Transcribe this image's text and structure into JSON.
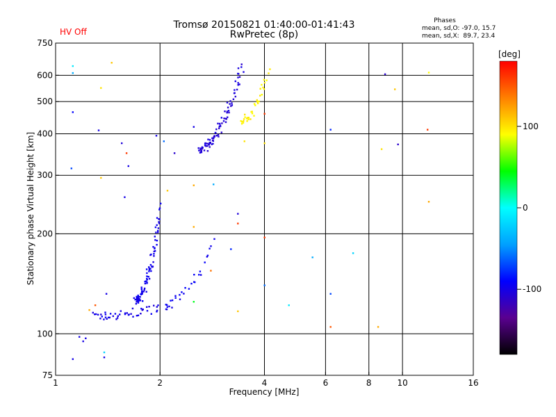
{
  "header": {
    "hv_status": "HV Off",
    "title_line1": "Tromsø 20150821 01:40:00-01:41:43",
    "title_line2": "RwPretec (8p)"
  },
  "stats": {
    "heading": "Phases",
    "line_o": "mean, sd,O: -97.0, 15.7",
    "line_x": "mean, sd,X:  89.7, 23.4"
  },
  "colorbar": {
    "unit_label": "[deg]",
    "ticks": [
      {
        "value": 100,
        "label": "100"
      },
      {
        "value": 0,
        "label": "0"
      },
      {
        "value": -100,
        "label": "-100"
      }
    ],
    "range": [
      -180,
      180
    ],
    "colors": [
      "#000000",
      "#5a0090",
      "#0000ff",
      "#00a0ff",
      "#00ffff",
      "#00ff00",
      "#ffff00",
      "#ff8000",
      "#ff0000"
    ]
  },
  "chart_data": {
    "type": "scatter",
    "title": "Tromsø 20150821 01:40:00-01:41:43",
    "subtitle": "RwPretec (8p)",
    "xlabel": "Frequency [MHz]",
    "ylabel": "Stationary phase Virtual Height [km]",
    "xscale": "log",
    "yscale": "log",
    "xlim": [
      1,
      16
    ],
    "ylim": [
      75,
      750
    ],
    "xticks": [
      {
        "value": 1,
        "label": "1"
      },
      {
        "value": 2,
        "label": "2"
      },
      {
        "value": 4,
        "label": "4"
      },
      {
        "value": 6,
        "label": "6"
      },
      {
        "value": 8,
        "label": "8"
      },
      {
        "value": 10,
        "label": "10"
      },
      {
        "value": 16,
        "label": "16"
      }
    ],
    "yticks": [
      {
        "value": 75,
        "label": "75"
      },
      {
        "value": 100,
        "label": "100"
      },
      {
        "value": 200,
        "label": "200"
      },
      {
        "value": 300,
        "label": "300"
      },
      {
        "value": 400,
        "label": "400"
      },
      {
        "value": 500,
        "label": "500"
      },
      {
        "value": 600,
        "label": "600"
      },
      {
        "value": 750,
        "label": "750"
      }
    ],
    "xgrid": [
      2,
      4,
      6,
      8,
      10
    ],
    "ygrid": [
      100,
      200,
      300,
      400,
      500,
      600
    ],
    "grid": true,
    "traces": [
      {
        "desc": "O-mode lower layer bottom",
        "x0": 1.3,
        "x1": 2.0,
        "y0": 113,
        "y1": 120,
        "phase": -100,
        "count": 45
      },
      {
        "desc": "O-mode lower layer cusp",
        "x0": 1.7,
        "x1": 2.0,
        "y0": 125,
        "y1": 240,
        "phase": -98,
        "count": 90
      },
      {
        "desc": "X-mode lower layer",
        "x0": 2.05,
        "x1": 2.85,
        "y0": 121,
        "y1": 190,
        "phase": -95,
        "count": 30
      },
      {
        "desc": "O-mode F layer",
        "x0": 2.6,
        "x1": 3.45,
        "y0": 360,
        "y1": 640,
        "phase": -105,
        "count": 90
      },
      {
        "desc": "X-mode F layer",
        "x0": 3.45,
        "x1": 4.1,
        "y0": 440,
        "y1": 620,
        "phase": 95,
        "count": 35
      }
    ],
    "points": [
      {
        "x": 1.12,
        "y": 640,
        "phase": -10
      },
      {
        "x": 1.12,
        "y": 610,
        "phase": -40
      },
      {
        "x": 1.12,
        "y": 465,
        "phase": -90
      },
      {
        "x": 1.11,
        "y": 315,
        "phase": -70
      },
      {
        "x": 1.35,
        "y": 550,
        "phase": 100
      },
      {
        "x": 1.45,
        "y": 655,
        "phase": 110
      },
      {
        "x": 1.33,
        "y": 410,
        "phase": -100
      },
      {
        "x": 1.55,
        "y": 375,
        "phase": -105
      },
      {
        "x": 1.6,
        "y": 350,
        "phase": 160
      },
      {
        "x": 1.62,
        "y": 320,
        "phase": -100
      },
      {
        "x": 1.35,
        "y": 295,
        "phase": 110
      },
      {
        "x": 1.58,
        "y": 258,
        "phase": -100
      },
      {
        "x": 1.17,
        "y": 98,
        "phase": -100
      },
      {
        "x": 1.2,
        "y": 95,
        "phase": -100
      },
      {
        "x": 1.22,
        "y": 97,
        "phase": -100
      },
      {
        "x": 1.12,
        "y": 84,
        "phase": -100
      },
      {
        "x": 1.38,
        "y": 88,
        "phase": -20
      },
      {
        "x": 1.38,
        "y": 85,
        "phase": -100
      },
      {
        "x": 1.25,
        "y": 118,
        "phase": 120
      },
      {
        "x": 1.3,
        "y": 122,
        "phase": 150
      },
      {
        "x": 1.4,
        "y": 132,
        "phase": -100
      },
      {
        "x": 1.95,
        "y": 395,
        "phase": -100
      },
      {
        "x": 2.05,
        "y": 380,
        "phase": -60
      },
      {
        "x": 2.1,
        "y": 270,
        "phase": 110
      },
      {
        "x": 2.2,
        "y": 350,
        "phase": -110
      },
      {
        "x": 2.5,
        "y": 420,
        "phase": -100
      },
      {
        "x": 2.5,
        "y": 280,
        "phase": 120
      },
      {
        "x": 2.85,
        "y": 282,
        "phase": -40
      },
      {
        "x": 2.5,
        "y": 210,
        "phase": 120
      },
      {
        "x": 2.5,
        "y": 125,
        "phase": 40
      },
      {
        "x": 2.8,
        "y": 155,
        "phase": 140
      },
      {
        "x": 3.35,
        "y": 230,
        "phase": -105
      },
      {
        "x": 3.35,
        "y": 215,
        "phase": 160
      },
      {
        "x": 3.35,
        "y": 117,
        "phase": 110
      },
      {
        "x": 3.2,
        "y": 180,
        "phase": -80
      },
      {
        "x": 3.5,
        "y": 380,
        "phase": 100
      },
      {
        "x": 4.0,
        "y": 375,
        "phase": 100
      },
      {
        "x": 4.0,
        "y": 460,
        "phase": 160
      },
      {
        "x": 4.0,
        "y": 195,
        "phase": 160
      },
      {
        "x": 4.0,
        "y": 140,
        "phase": -60
      },
      {
        "x": 4.7,
        "y": 122,
        "phase": -10
      },
      {
        "x": 5.5,
        "y": 170,
        "phase": -40
      },
      {
        "x": 6.2,
        "y": 412,
        "phase": -80
      },
      {
        "x": 6.2,
        "y": 132,
        "phase": -70
      },
      {
        "x": 6.2,
        "y": 105,
        "phase": 150
      },
      {
        "x": 7.2,
        "y": 175,
        "phase": -20
      },
      {
        "x": 8.5,
        "y": 105,
        "phase": 120
      },
      {
        "x": 8.7,
        "y": 360,
        "phase": 100
      },
      {
        "x": 8.9,
        "y": 605,
        "phase": -110
      },
      {
        "x": 9.5,
        "y": 545,
        "phase": 110
      },
      {
        "x": 9.7,
        "y": 372,
        "phase": -110
      },
      {
        "x": 11.8,
        "y": 412,
        "phase": 160
      },
      {
        "x": 11.9,
        "y": 612,
        "phase": 90
      },
      {
        "x": 11.9,
        "y": 250,
        "phase": 120
      }
    ]
  }
}
